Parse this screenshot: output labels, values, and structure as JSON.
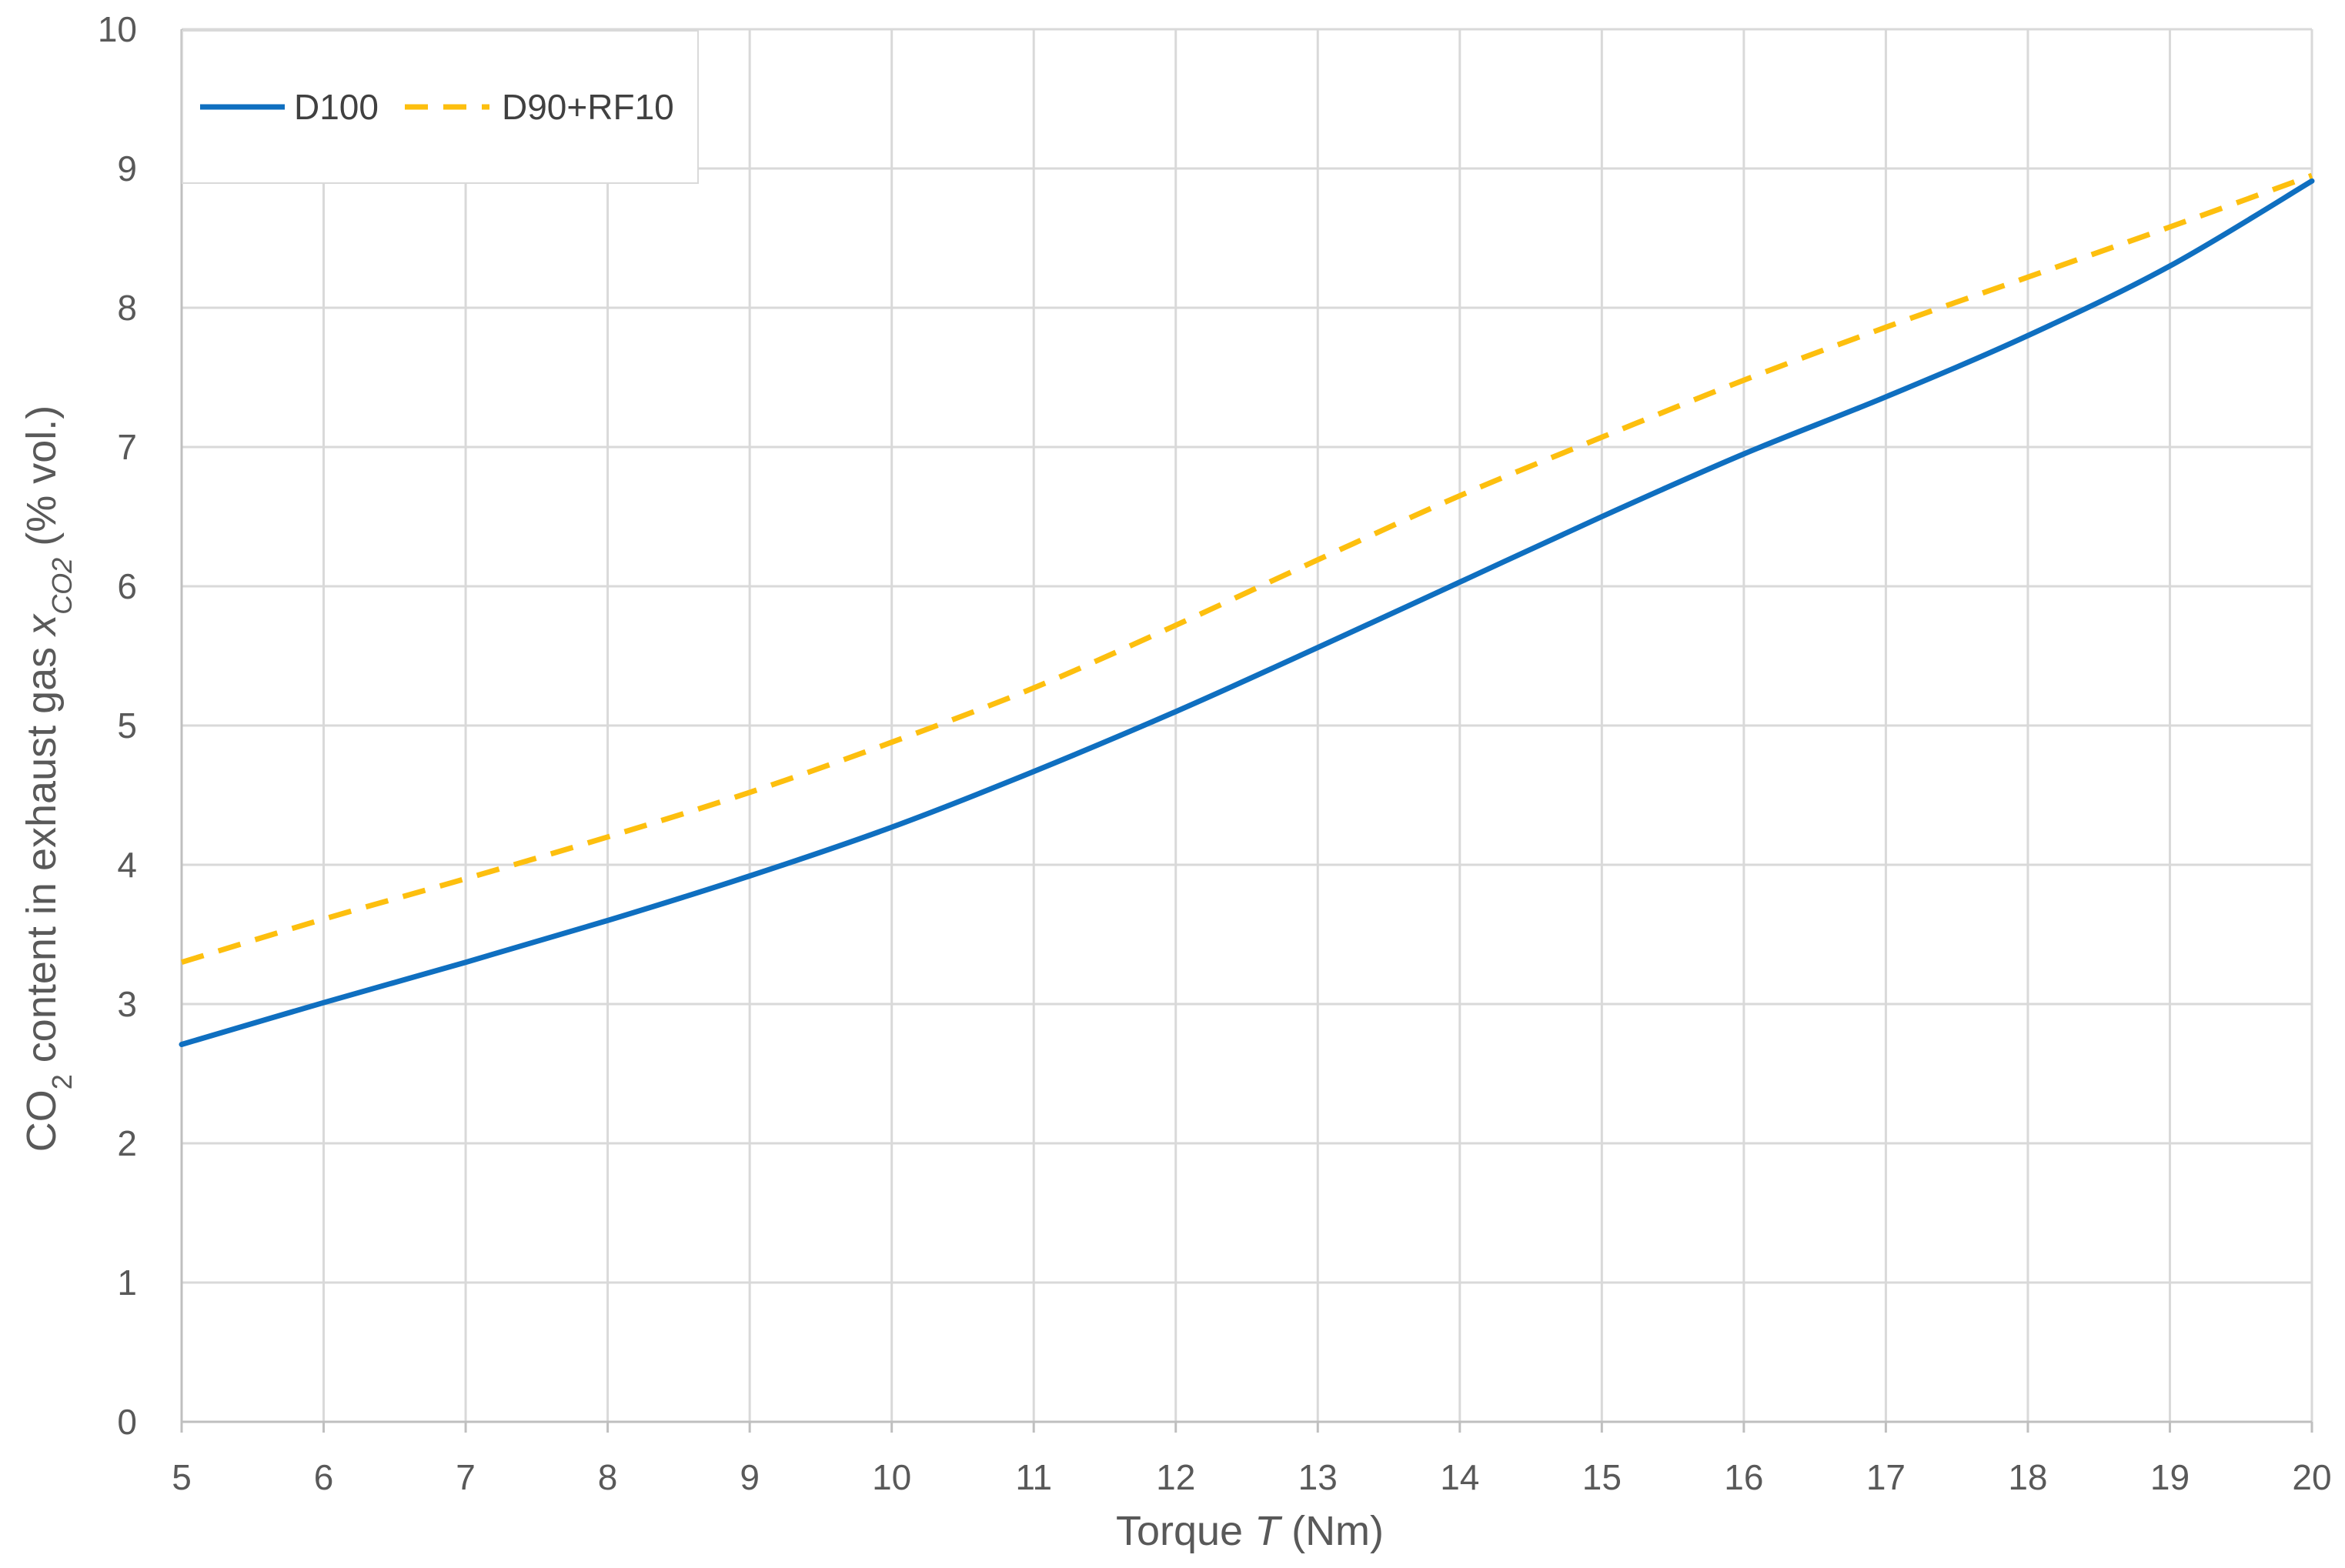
{
  "chart_data": {
    "type": "line",
    "xlabel": {
      "prefix": "Torque ",
      "symbol": "T",
      "suffix": " (Nm)"
    },
    "ylabel": {
      "part1": "CO",
      "sub1": "2",
      "part2": " content in exhaust gas ",
      "symbol": "x",
      "sub2": "CO2",
      "part3": " (% vol.)"
    },
    "xlim": [
      5,
      20
    ],
    "ylim": [
      0,
      10
    ],
    "xticks": [
      "5",
      "6",
      "7",
      "8",
      "9",
      "10",
      "11",
      "12",
      "13",
      "14",
      "15",
      "16",
      "17",
      "18",
      "19",
      "20"
    ],
    "yticks": [
      "0",
      "1",
      "2",
      "3",
      "4",
      "5",
      "6",
      "7",
      "8",
      "9",
      "10"
    ],
    "grid": true,
    "legend_position": "top-left",
    "x": [
      5,
      6,
      7,
      8,
      9,
      10,
      11,
      12,
      13,
      14,
      15,
      16,
      17,
      18,
      19,
      20
    ],
    "series": [
      {
        "name": "D100",
        "color": "#0f6fc0",
        "style": "solid",
        "values": [
          2.71,
          3.01,
          3.3,
          3.6,
          3.92,
          4.27,
          4.67,
          5.1,
          5.56,
          6.03,
          6.5,
          6.95,
          7.36,
          7.8,
          8.3,
          8.91
        ]
      },
      {
        "name": "D90+RF10",
        "color": "#fdbf0e",
        "style": "dashed",
        "values": [
          3.3,
          3.61,
          3.9,
          4.2,
          4.52,
          4.88,
          5.27,
          5.72,
          6.19,
          6.65,
          7.07,
          7.48,
          7.86,
          8.22,
          8.58,
          8.95
        ]
      }
    ]
  }
}
